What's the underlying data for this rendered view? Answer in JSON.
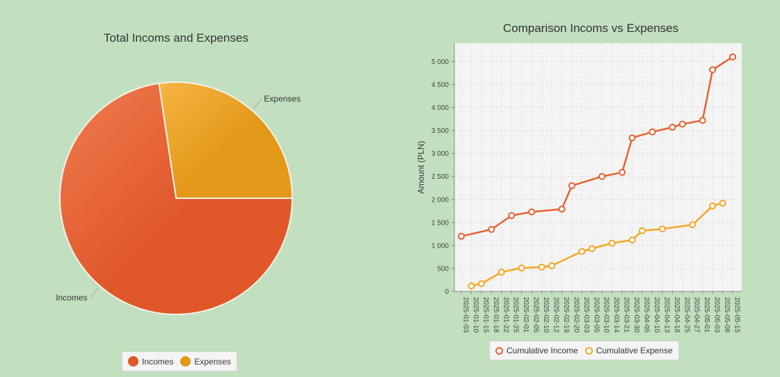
{
  "colors": {
    "background": "#c2dfc0",
    "incomes": "#e0572a",
    "expenses": "#e3981a",
    "cumulative_income": "#e8612f",
    "cumulative_expense": "#f5a623"
  },
  "chart_data": [
    {
      "type": "pie",
      "title": "Total Incoms and Expenses",
      "slices": [
        {
          "label": "Incomes",
          "value": 5100,
          "color": "#e0572a"
        },
        {
          "label": "Expenses",
          "value": 1920,
          "color": "#e3981a"
        }
      ],
      "legend": [
        "Incomes",
        "Expenses"
      ],
      "legend_position": "bottom"
    },
    {
      "type": "line",
      "title": "Comparison Incoms vs Expenses",
      "ylabel": "Amount (PLN)",
      "xlabel": "",
      "ylim": [
        0,
        5400
      ],
      "yticks": [
        0,
        500,
        1000,
        1500,
        2000,
        2500,
        3000,
        3500,
        4000,
        4500,
        5000
      ],
      "ytick_labels": [
        "0",
        "500",
        "1 000",
        "1 500",
        "2 000",
        "2 500",
        "3 000",
        "3 500",
        "4 000",
        "4 500",
        "5 000"
      ],
      "categories": [
        "2025-01-03",
        "2025-01-10",
        "2025-01-15",
        "2025-01-18",
        "2025-01-22",
        "2025-01-25",
        "2025-02-01",
        "2025-02-05",
        "2025-02-10",
        "2025-02-12",
        "2025-02-19",
        "2025-02-20",
        "2025-03-03",
        "2025-03-05",
        "2025-03-10",
        "2025-03-14",
        "2025-03-21",
        "2025-03-30",
        "2025-04-05",
        "2025-04-10",
        "2025-04-13",
        "2025-04-18",
        "2025-04-25",
        "2025-04-27",
        "2025-05-01",
        "2025-05-03",
        "2025-05-08",
        "2025-05-15"
      ],
      "grid": true,
      "legend_position": "bottom",
      "series": [
        {
          "name": "Cumulative Income",
          "color": "#e8612f",
          "points": [
            [
              "2025-01-03",
              1200
            ],
            [
              "2025-01-18",
              1350
            ],
            [
              "2025-01-25",
              1650
            ],
            [
              "2025-02-05",
              1730
            ],
            [
              "2025-02-19",
              1790
            ],
            [
              "2025-02-20",
              2300
            ],
            [
              "2025-03-10",
              2500
            ],
            [
              "2025-03-21",
              2590
            ],
            [
              "2025-03-30",
              3340
            ],
            [
              "2025-04-10",
              3470
            ],
            [
              "2025-04-18",
              3570
            ],
            [
              "2025-04-25",
              3640
            ],
            [
              "2025-05-01",
              3720
            ],
            [
              "2025-05-03",
              4820
            ],
            [
              "2025-05-15",
              5100
            ]
          ]
        },
        {
          "name": "Cumulative Expense",
          "color": "#f5a623",
          "points": [
            [
              "2025-01-10",
              120
            ],
            [
              "2025-01-15",
              170
            ],
            [
              "2025-01-22",
              420
            ],
            [
              "2025-02-01",
              510
            ],
            [
              "2025-02-10",
              530
            ],
            [
              "2025-02-12",
              560
            ],
            [
              "2025-03-03",
              870
            ],
            [
              "2025-03-05",
              930
            ],
            [
              "2025-03-14",
              1050
            ],
            [
              "2025-03-30",
              1120
            ],
            [
              "2025-04-05",
              1320
            ],
            [
              "2025-04-13",
              1360
            ],
            [
              "2025-04-27",
              1450
            ],
            [
              "2025-05-03",
              1860
            ],
            [
              "2025-05-08",
              1920
            ]
          ]
        }
      ]
    }
  ]
}
